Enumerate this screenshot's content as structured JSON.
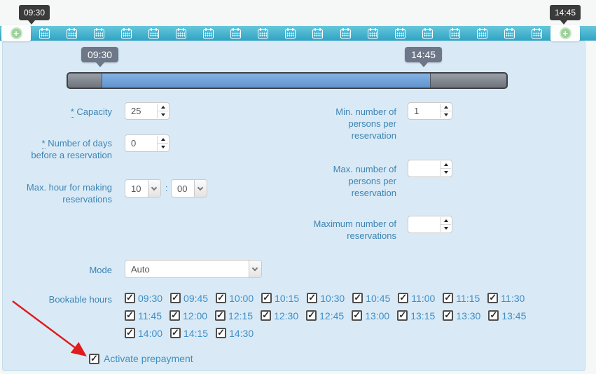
{
  "timebar": {
    "start_tooltip": "09:30",
    "end_tooltip": "14:45",
    "calendar_icon_count": 19,
    "add_start_label": "+",
    "add_end_label": "+"
  },
  "slider": {
    "start_tooltip": "09:30",
    "end_tooltip": "14:45"
  },
  "form": {
    "capacity": {
      "required_mark": "*",
      "label": "Capacity",
      "value": "25"
    },
    "min_persons": {
      "label": "Min. number of persons per reservation",
      "value": "1"
    },
    "days_before": {
      "required_mark": "*",
      "label": "Number of days before a reservation",
      "value": "0"
    },
    "max_persons": {
      "label": "Max. number of persons per reservation",
      "value": ""
    },
    "max_hour": {
      "label": "Max. hour for making reservations",
      "hour_value": "10",
      "separator": ":",
      "minute_value": "00"
    },
    "max_reservations": {
      "label": "Maximum number of reservations",
      "value": ""
    },
    "mode": {
      "label": "Mode",
      "value": "Auto"
    }
  },
  "bookable_hours": {
    "label": "Bookable hours",
    "all_checked": true,
    "rows": [
      [
        "09:30",
        "09:45",
        "10:00",
        "10:15",
        "10:30",
        "10:45",
        "11:00",
        "11:15",
        "11:30"
      ],
      [
        "11:45",
        "12:00",
        "12:15",
        "12:30",
        "12:45",
        "13:00",
        "13:15",
        "13:30",
        "13:45"
      ],
      [
        "14:00",
        "14:15",
        "14:30"
      ]
    ]
  },
  "prepayment": {
    "label": "Activate prepayment",
    "checked": true
  },
  "colors": {
    "teal_bar": "#49b4d0",
    "panel_bg": "#d9eaf6",
    "label_blue": "#3e84b4",
    "hour_blue": "#3d8ec7",
    "range_blue": "#72a4d9",
    "tooltip_dark": "#3b3b3b",
    "tooltip_gray": "#6d7787",
    "plus_green": "#9bd09a",
    "arrow_red": "#e01b1b"
  }
}
